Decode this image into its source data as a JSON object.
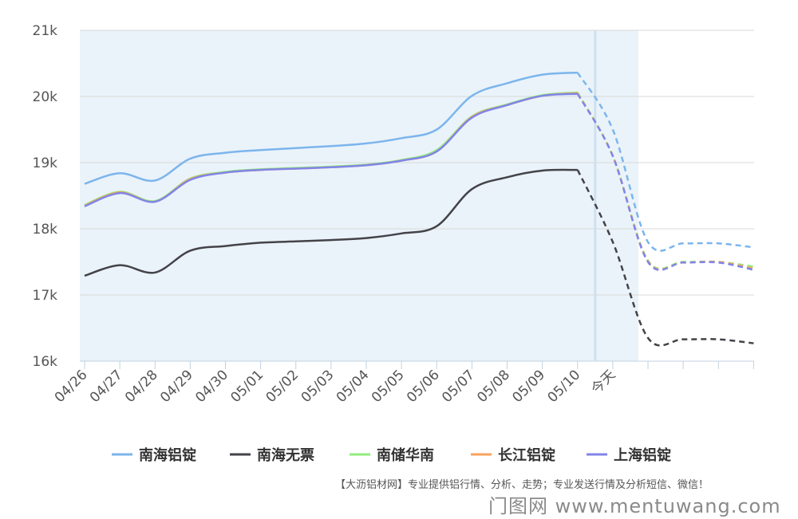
{
  "chart_data": {
    "type": "line",
    "categories": [
      "04/26",
      "04/27",
      "04/28",
      "04/29",
      "04/30",
      "05/01",
      "05/02",
      "05/03",
      "05/04",
      "05/05",
      "05/06",
      "05/07",
      "05/08",
      "05/09",
      "05/10",
      "今天",
      "",
      "",
      "",
      ""
    ],
    "forecast_from_index": 14,
    "ylim": [
      16000,
      21000
    ],
    "yticks": [
      16000,
      17000,
      18000,
      19000,
      20000,
      21000
    ],
    "ytick_labels": [
      "16k",
      "17k",
      "18k",
      "19k",
      "20k",
      "21k"
    ],
    "grid": true,
    "legend_position": "bottom",
    "series": [
      {
        "name": "南海铝锭",
        "color": "#7cb5ec",
        "values": [
          18680,
          18840,
          18730,
          19060,
          19150,
          19190,
          19220,
          19250,
          19290,
          19370,
          19500,
          20010,
          20200,
          20330,
          20360,
          19500,
          17800,
          17780,
          17780,
          17720
        ]
      },
      {
        "name": "南海无票",
        "color": "#434348",
        "values": [
          17290,
          17450,
          17340,
          17670,
          17740,
          17790,
          17810,
          17830,
          17860,
          17930,
          18040,
          18600,
          18780,
          18880,
          18890,
          17800,
          16350,
          16330,
          16330,
          16270
        ]
      },
      {
        "name": "南储华南",
        "color": "#90ed7d",
        "values": [
          18360,
          18560,
          18420,
          18760,
          18860,
          18900,
          18920,
          18940,
          18970,
          19040,
          19190,
          19700,
          19880,
          20020,
          20060,
          19100,
          17520,
          17500,
          17500,
          17430
        ]
      },
      {
        "name": "长江铝锭",
        "color": "#f7a35c",
        "values": [
          18350,
          18550,
          18410,
          18750,
          18850,
          18890,
          18910,
          18930,
          18960,
          19030,
          19170,
          19690,
          19870,
          20010,
          20050,
          19100,
          17510,
          17490,
          17500,
          17400
        ]
      },
      {
        "name": "上海铝锭",
        "color": "#8085e9",
        "values": [
          18340,
          18540,
          18410,
          18740,
          18850,
          18890,
          18910,
          18930,
          18960,
          19030,
          19170,
          19680,
          19870,
          20010,
          20040,
          19100,
          17500,
          17490,
          17490,
          17380
        ]
      }
    ]
  },
  "footer": {
    "source_text": "【大沥铝材网】专业提供铝行情、分析、走势；专业发送行情及分析短信、微信！",
    "brand_text": "门图网 www.mentuwang.com"
  }
}
